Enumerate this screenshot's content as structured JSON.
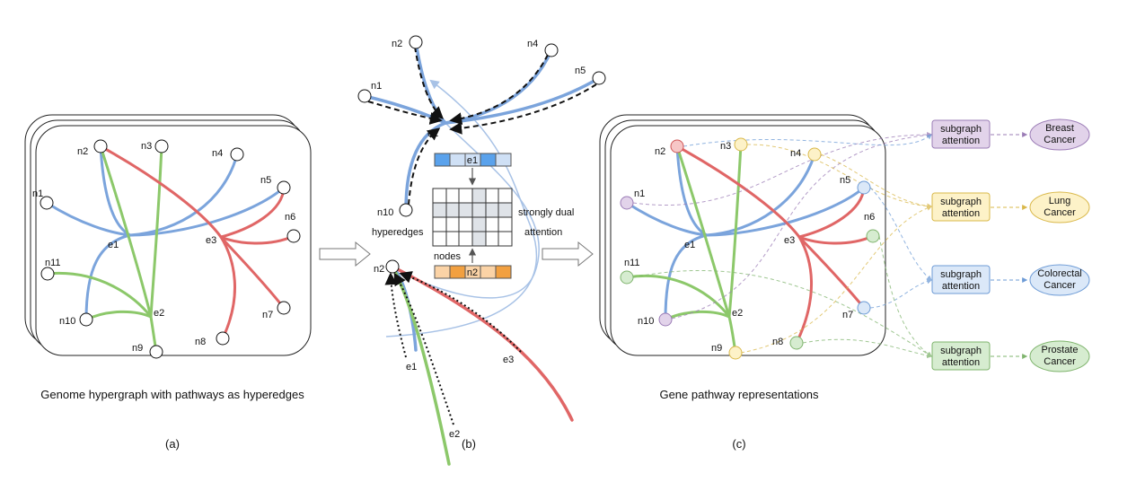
{
  "colors": {
    "blue": "#7ba4dc",
    "green": "#8cc86a",
    "red": "#e06666",
    "purple_fill": "#e2d3ea",
    "purple_stroke": "#9b7cb6",
    "yellow_fill": "#fdf2c8",
    "yellow_stroke": "#d9b84a",
    "lightblue_fill": "#dbe8f8",
    "lightblue_stroke": "#6d9bd6",
    "green_fill": "#d6ecd0",
    "green_stroke": "#7fb46d",
    "e1_dark": "#5aa2ec",
    "n2_dark": "#f2a040",
    "n2_light": "#fbd3a6"
  },
  "panel_a": {
    "nodes": {
      "n1": "n1",
      "n2": "n2",
      "n3": "n3",
      "n4": "n4",
      "n5": "n5",
      "n6": "n6",
      "n7": "n7",
      "n8": "n8",
      "n9": "n9",
      "n10": "n10",
      "n11": "n11"
    },
    "edges": {
      "e1": "e1",
      "e2": "e2",
      "e3": "e3"
    },
    "caption": "Genome hypergraph with pathways as hyperedges",
    "label": "(a)"
  },
  "panel_b": {
    "nodes": {
      "n1": "n1",
      "n2": "n2",
      "n4": "n4",
      "n5": "n5",
      "n10": "n10",
      "n2_bottom": "n2"
    },
    "edges": {
      "e1_top": "e1",
      "e1_bottom": "e1",
      "e2": "e2",
      "e3": "e3"
    },
    "e1_vector": "e1",
    "n2_vector": "n2",
    "hyperedges": "hyperedges",
    "nodes_label": "nodes",
    "attention_line1": "strongly dual",
    "attention_line2": "attention",
    "label": "(b)"
  },
  "panel_c": {
    "nodes": {
      "n1": "n1",
      "n2": "n2",
      "n3": "n3",
      "n4": "n4",
      "n5": "n5",
      "n6": "n6",
      "n7": "n7",
      "n8": "n8",
      "n9": "n9",
      "n10": "n10",
      "n11": "n11"
    },
    "edges": {
      "e1": "e1",
      "e2": "e2",
      "e3": "e3"
    },
    "caption": "Gene pathway representations",
    "label": "(c)",
    "attention": [
      {
        "line1": "subgraph",
        "line2": "attention"
      },
      {
        "line1": "subgraph",
        "line2": "attention"
      },
      {
        "line1": "subgraph",
        "line2": "attention"
      },
      {
        "line1": "subgraph",
        "line2": "attention"
      }
    ],
    "cancers": [
      {
        "line1": "Breast",
        "line2": "Cancer"
      },
      {
        "line1": "Lung",
        "line2": "Cancer"
      },
      {
        "line1": "Colorectal",
        "line2": "Cancer"
      },
      {
        "line1": "Prostate",
        "line2": "Cancer"
      }
    ]
  }
}
